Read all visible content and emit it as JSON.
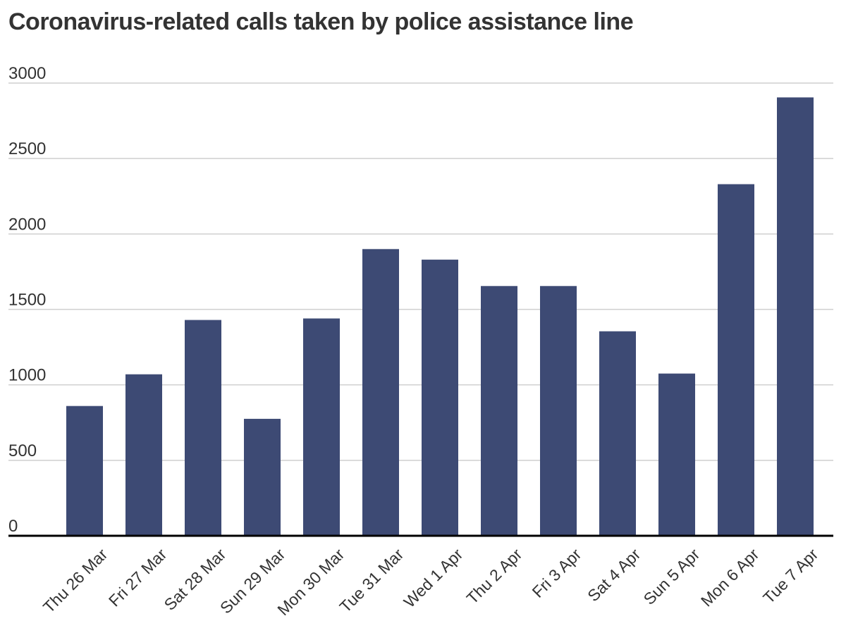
{
  "chart_data": {
    "type": "bar",
    "title": "Coronavirus-related calls taken by police assistance line",
    "xlabel": "",
    "ylabel": "",
    "ylim": [
      0,
      3000
    ],
    "yticks": [
      0,
      500,
      1000,
      1500,
      2000,
      2500,
      3000
    ],
    "grid": true,
    "categories": [
      "Thu 26 Mar",
      "Fri 27 Mar",
      "Sat 28 Mar",
      "Sun 29 Mar",
      "Mon 30 Mar",
      "Tue 31 Mar",
      "Wed 1 Apr",
      "Thu 2 Apr",
      "Fri 3 Apr",
      "Sat 4 Apr",
      "Sun 5 Apr",
      "Mon 6 Apr",
      "Tue 7 Apr"
    ],
    "values": [
      860,
      1070,
      1430,
      775,
      1440,
      1900,
      1830,
      1655,
      1655,
      1355,
      1075,
      2330,
      2905
    ],
    "colors": {
      "bar": "#3d4a74",
      "grid": "#cfcfcf",
      "axis": "#000000",
      "text": "#333333"
    }
  }
}
